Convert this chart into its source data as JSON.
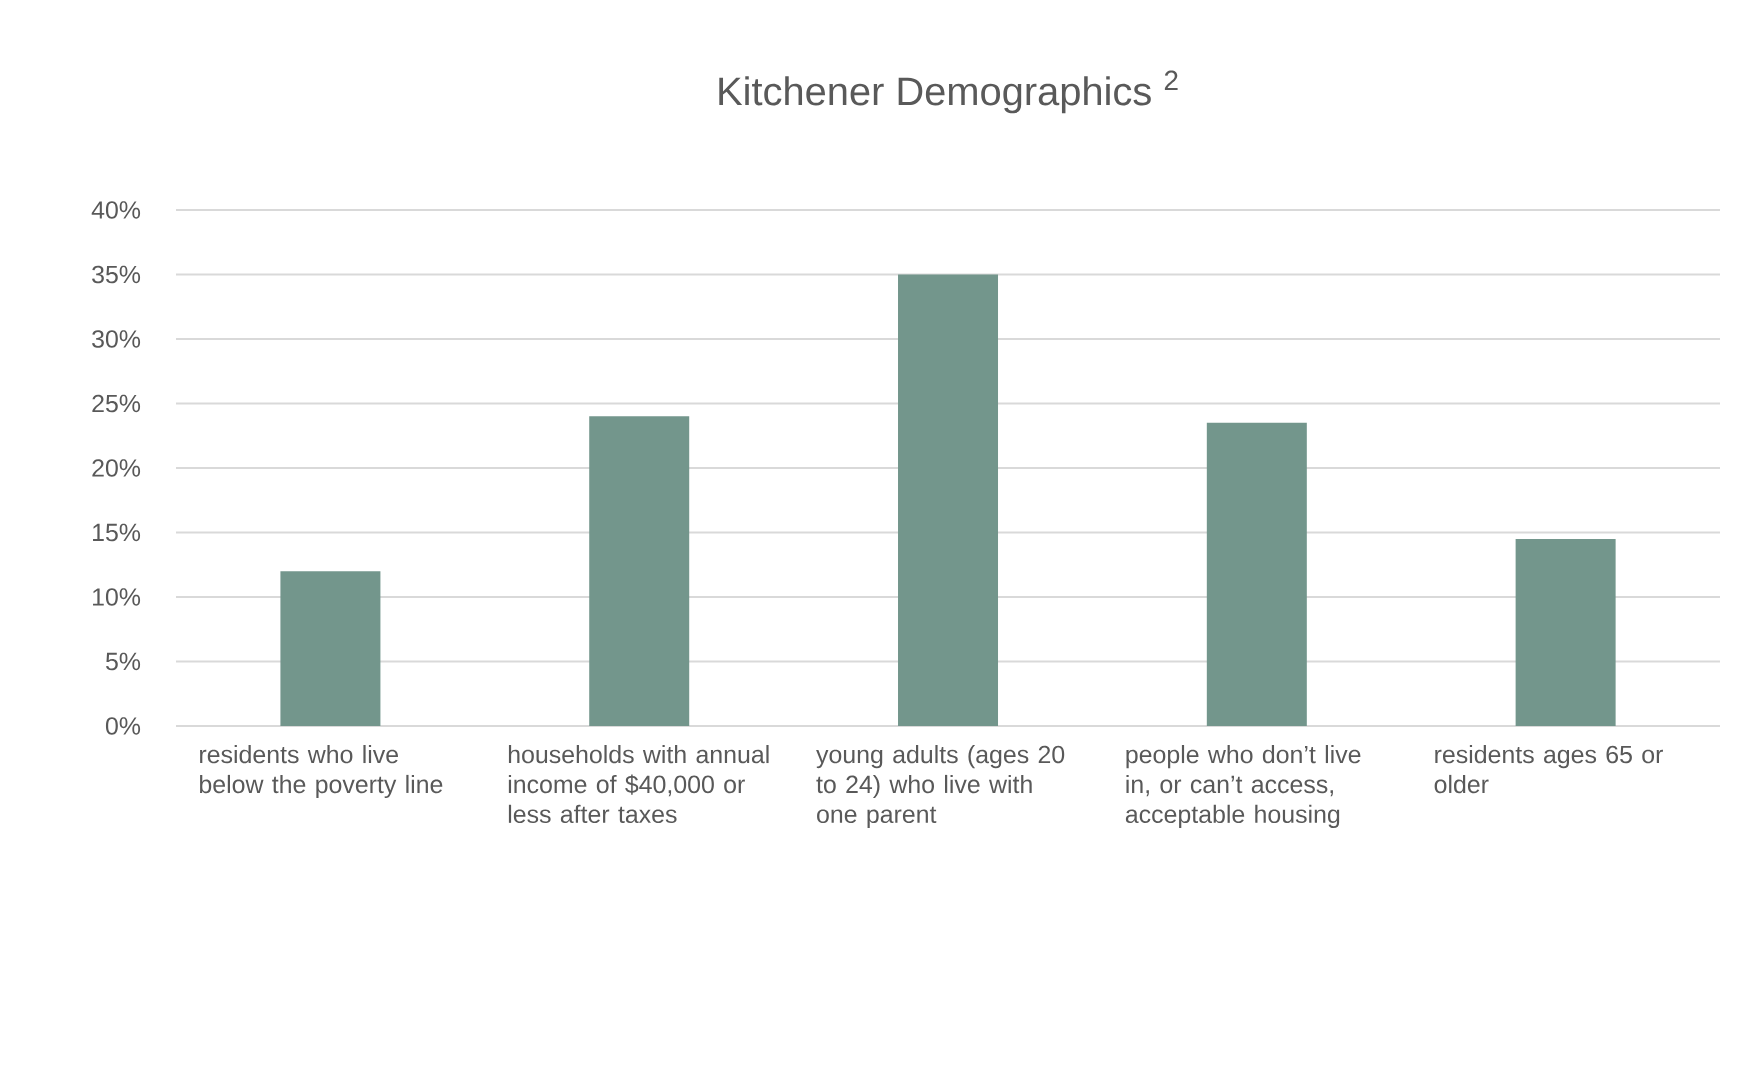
{
  "chart_data": {
    "type": "bar",
    "title": "Kitchener Demographics $^{2}$",
    "categories": [
      "residents who live below the poverty line",
      "households with annual income of $40,000 or less after taxes",
      "young adults (ages 20 to 24) who live with one parent",
      "people who don’t live in, or can’t access, acceptable housing",
      "residents ages 65 or older"
    ],
    "values": [
      12,
      24,
      35,
      23.5,
      14.5
    ],
    "color": "#73968c",
    "ylim": [
      0,
      40
    ],
    "yticks": [
      {
        "value": 0,
        "label": "0%"
      },
      {
        "value": 5,
        "label": "5%"
      },
      {
        "value": 10,
        "label": "10%"
      },
      {
        "value": 15,
        "label": "15%"
      },
      {
        "value": 20,
        "label": "20%"
      },
      {
        "value": 25,
        "label": "25%"
      },
      {
        "value": 30,
        "label": "30%"
      },
      {
        "value": 35,
        "label": "35%"
      },
      {
        "value": 40,
        "label": "40%"
      }
    ],
    "grid": "y"
  }
}
